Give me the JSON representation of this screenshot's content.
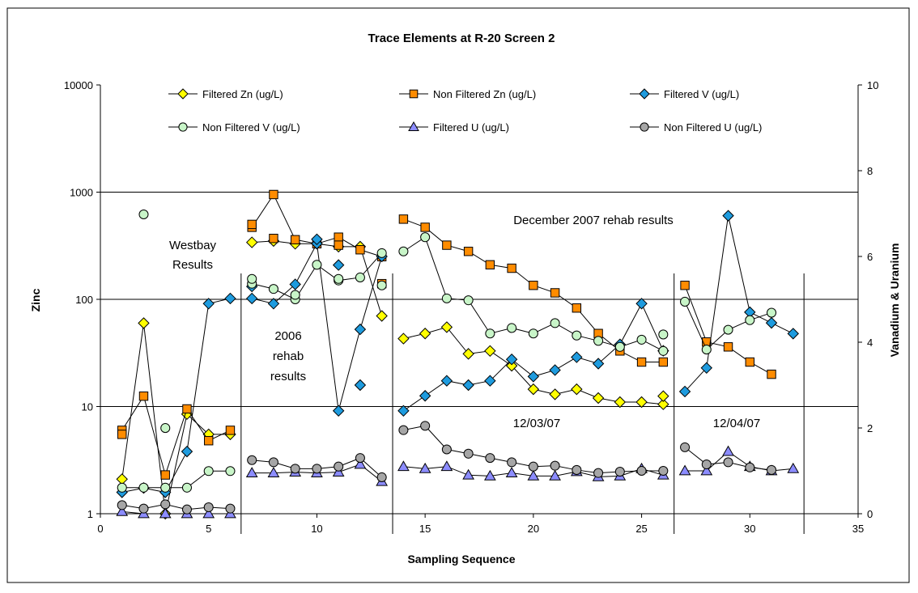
{
  "chart_data": {
    "type": "scatter",
    "title": "Trace Elements at R-20 Screen 2",
    "xlabel": "Sampling Sequence",
    "ylabel_left": "Zinc",
    "ylabel_right": "Vanadium & Uranium",
    "xlim": [
      0,
      35
    ],
    "x_ticks": [
      0,
      5,
      10,
      15,
      20,
      25,
      30,
      35
    ],
    "ylim_left": [
      1,
      10000
    ],
    "y_scale_left": "log",
    "y_ticks_left": [
      1,
      10,
      100,
      1000,
      10000
    ],
    "ylim_right": [
      0,
      10
    ],
    "y_ticks_right": [
      0,
      2,
      4,
      6,
      8,
      10
    ],
    "grid": "horizontal major lines on left axis",
    "legend_position": "top",
    "series": [
      {
        "name": "Filtered Zn (ug/L)",
        "axis": "left",
        "marker": "diamond",
        "color": "#ffff00",
        "segments": [
          [
            [
              1,
              2.1
            ],
            [
              2,
              60
            ],
            [
              3,
              1.0
            ],
            [
              4,
              8.5
            ],
            [
              5,
              5.5
            ],
            [
              6,
              5.5
            ]
          ],
          [
            [
              7,
              340
            ],
            [
              8,
              350
            ],
            [
              9,
              330
            ],
            [
              10,
              330
            ],
            [
              11,
              310
            ],
            [
              12,
              310
            ],
            [
              13,
              70
            ]
          ],
          [
            [
              14,
              43
            ],
            [
              15,
              48
            ],
            [
              16,
              55
            ],
            [
              17,
              31
            ],
            [
              18,
              33
            ],
            [
              19,
              24
            ],
            [
              20,
              14.5
            ],
            [
              21,
              13
            ],
            [
              22,
              14.5
            ],
            [
              23,
              12
            ],
            [
              24,
              11
            ],
            [
              25,
              11
            ],
            [
              26,
              10.5
            ]
          ]
        ],
        "extra_points": [
          [
            26,
            12.5
          ]
        ]
      },
      {
        "name": "Non Filtered Zn (ug/L)",
        "axis": "left",
        "marker": "square",
        "color": "#ff8c00",
        "segments": [
          [
            [
              1,
              6
            ],
            [
              2,
              12.5
            ],
            [
              3,
              2.3
            ],
            [
              4,
              9.5
            ],
            [
              5,
              4.8
            ],
            [
              6,
              6
            ]
          ],
          [
            [
              7,
              470
            ],
            [
              8,
              950
            ],
            [
              9,
              360
            ],
            [
              10,
              330
            ],
            [
              11,
              380
            ],
            [
              12,
              290
            ],
            [
              13,
              250
            ]
          ],
          [
            [
              14,
              560
            ],
            [
              15,
              470
            ],
            [
              16,
              320
            ],
            [
              17,
              280
            ],
            [
              18,
              210
            ],
            [
              19,
              195
            ],
            [
              20,
              135
            ],
            [
              21,
              115
            ],
            [
              22,
              83
            ],
            [
              23,
              48
            ],
            [
              24,
              33
            ],
            [
              25,
              26
            ],
            [
              26,
              26
            ]
          ],
          [
            [
              27,
              135
            ],
            [
              28,
              40
            ],
            [
              29,
              36
            ],
            [
              30,
              26
            ],
            [
              31,
              20
            ]
          ]
        ],
        "extra_points": [
          [
            1,
            5.5
          ],
          [
            7,
            500
          ],
          [
            8,
            370
          ],
          [
            11,
            320
          ],
          [
            13,
            140
          ]
        ]
      },
      {
        "name": "Filtered V (ug/L)",
        "axis": "right",
        "marker": "diamond",
        "color": "#1e9bde",
        "segments": [
          [
            [
              1,
              0.5
            ],
            [
              2,
              0.6
            ],
            [
              3,
              0.5
            ],
            [
              4,
              1.45
            ],
            [
              5,
              4.9
            ],
            [
              6,
              5.02
            ]
          ],
          [
            [
              7,
              5.02
            ],
            [
              8,
              4.9
            ],
            [
              9,
              5.35
            ],
            [
              10,
              6.3
            ],
            [
              11,
              2.4
            ],
            [
              12,
              4.3
            ],
            [
              13,
              6.0
            ]
          ],
          [
            [
              14,
              2.4
            ],
            [
              15,
              2.75
            ],
            [
              16,
              3.1
            ],
            [
              17,
              3.0
            ],
            [
              18,
              3.1
            ],
            [
              19,
              3.6
            ],
            [
              20,
              3.2
            ],
            [
              21,
              3.35
            ],
            [
              22,
              3.65
            ],
            [
              23,
              3.5
            ],
            [
              24,
              3.95
            ],
            [
              25,
              4.9
            ],
            [
              26,
              3.8
            ]
          ],
          [
            [
              27,
              2.85
            ],
            [
              28,
              3.4
            ],
            [
              29,
              6.95
            ],
            [
              30,
              4.7
            ],
            [
              31,
              4.45
            ],
            [
              32,
              4.2
            ]
          ]
        ],
        "extra_points": [
          [
            7,
            5.3
          ],
          [
            10,
            6.4
          ],
          [
            11,
            5.8
          ],
          [
            12,
            3.0
          ]
        ]
      },
      {
        "name": "Non Filtered V (ug/L)",
        "axis": "left",
        "marker": "circle",
        "color": "#c8f5c8",
        "segments": [
          [
            [
              1,
              1.75
            ],
            [
              2,
              1.75
            ],
            [
              3,
              1.75
            ],
            [
              4,
              1.75
            ],
            [
              5,
              2.5
            ],
            [
              6,
              2.5
            ]
          ],
          [
            [
              7,
              140
            ],
            [
              8,
              125
            ],
            [
              9,
              100
            ],
            [
              10,
              210
            ],
            [
              11,
              150
            ],
            [
              12,
              160
            ],
            [
              13,
              270
            ]
          ],
          [
            [
              14,
              280
            ],
            [
              15,
              380
            ],
            [
              16,
              102
            ],
            [
              17,
              98
            ],
            [
              18,
              48
            ],
            [
              19,
              54
            ],
            [
              20,
              48
            ],
            [
              21,
              60
            ],
            [
              22,
              46
            ],
            [
              23,
              41
            ],
            [
              24,
              36
            ],
            [
              25,
              42
            ],
            [
              26,
              33
            ]
          ],
          [
            [
              27,
              95
            ],
            [
              28,
              34
            ],
            [
              29,
              52
            ],
            [
              30,
              64
            ],
            [
              31,
              75
            ]
          ]
        ],
        "extra_points": [
          [
            2,
            620
          ],
          [
            3,
            6.3
          ],
          [
            7,
            155
          ],
          [
            9,
            110
          ],
          [
            11,
            155
          ],
          [
            13,
            135
          ],
          [
            26,
            47
          ]
        ]
      },
      {
        "name": "Filtered U (ug/L)",
        "axis": "right",
        "marker": "triangle",
        "color": "#8c8cff",
        "segments": [
          [
            [
              1,
              0.05
            ],
            [
              2,
              0.0
            ],
            [
              3,
              0.0
            ],
            [
              4,
              0.0
            ],
            [
              5,
              0.0
            ],
            [
              6,
              0.0
            ]
          ],
          [
            [
              7,
              0.95
            ],
            [
              8,
              0.95
            ],
            [
              9,
              0.97
            ],
            [
              10,
              0.95
            ],
            [
              11,
              0.97
            ],
            [
              12,
              1.15
            ],
            [
              13,
              0.75
            ]
          ],
          [
            [
              14,
              1.1
            ],
            [
              15,
              1.05
            ],
            [
              16,
              1.1
            ],
            [
              17,
              0.9
            ],
            [
              18,
              0.88
            ],
            [
              19,
              0.95
            ],
            [
              20,
              0.88
            ],
            [
              21,
              0.88
            ],
            [
              22,
              0.98
            ],
            [
              23,
              0.86
            ],
            [
              24,
              0.88
            ],
            [
              25,
              1.05
            ],
            [
              26,
              0.9
            ]
          ],
          [
            [
              27,
              1.0
            ],
            [
              28,
              1.0
            ],
            [
              29,
              1.45
            ],
            [
              30,
              1.1
            ],
            [
              31,
              1.0
            ],
            [
              32,
              1.05
            ]
          ]
        ]
      },
      {
        "name": "Non Filtered U (ug/L)",
        "axis": "right",
        "marker": "circle",
        "color": "#a6a6a6",
        "segments": [
          [
            [
              1,
              0.2
            ],
            [
              2,
              0.12
            ],
            [
              3,
              0.22
            ],
            [
              4,
              0.1
            ],
            [
              5,
              0.15
            ],
            [
              6,
              0.12
            ]
          ],
          [
            [
              7,
              1.25
            ],
            [
              8,
              1.2
            ],
            [
              9,
              1.05
            ],
            [
              10,
              1.05
            ],
            [
              11,
              1.1
            ],
            [
              12,
              1.3
            ],
            [
              13,
              0.85
            ]
          ],
          [
            [
              14,
              1.95
            ],
            [
              15,
              2.05
            ],
            [
              16,
              1.5
            ],
            [
              17,
              1.4
            ],
            [
              18,
              1.3
            ],
            [
              19,
              1.2
            ],
            [
              20,
              1.1
            ],
            [
              21,
              1.12
            ],
            [
              22,
              1.02
            ],
            [
              23,
              0.95
            ],
            [
              24,
              0.98
            ],
            [
              25,
              1.0
            ],
            [
              26,
              1.0
            ]
          ],
          [
            [
              27,
              1.55
            ],
            [
              28,
              1.15
            ],
            [
              29,
              1.2
            ],
            [
              30,
              1.08
            ],
            [
              31,
              1.02
            ]
          ]
        ]
      }
    ],
    "separators_x": [
      6.5,
      13.5,
      26.5,
      32.5
    ],
    "annotations": {
      "westbay_1": "Westbay",
      "westbay_2": "Results",
      "rehab2006_1": "2006",
      "rehab2006_2": "rehab",
      "rehab2006_3": "results",
      "dec2007": "December 2007 rehab results",
      "date1": "12/03/07",
      "date2": "12/04/07"
    }
  }
}
